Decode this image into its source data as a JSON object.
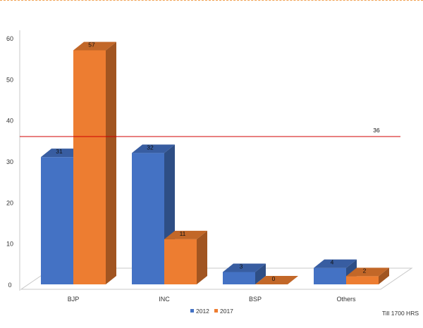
{
  "chart_data": {
    "type": "bar",
    "categories": [
      "BJP",
      "INC",
      "BSP",
      "Others"
    ],
    "series": [
      {
        "name": "2012",
        "values": [
          31,
          32,
          3,
          4
        ],
        "color": "#4472c4"
      },
      {
        "name": "2017",
        "values": [
          57,
          11,
          0,
          2
        ],
        "color": "#ed7d31"
      }
    ],
    "ylim": [
      0,
      60
    ],
    "yticks": [
      "0",
      "10",
      "20",
      "30",
      "40",
      "50",
      "60"
    ],
    "reference_line": {
      "value": 36,
      "label": "36",
      "color": "#d00000"
    },
    "legend_position": "bottom",
    "grid": false,
    "style": "3d-clustered-column"
  },
  "footnote": "Till 1700 HRS"
}
